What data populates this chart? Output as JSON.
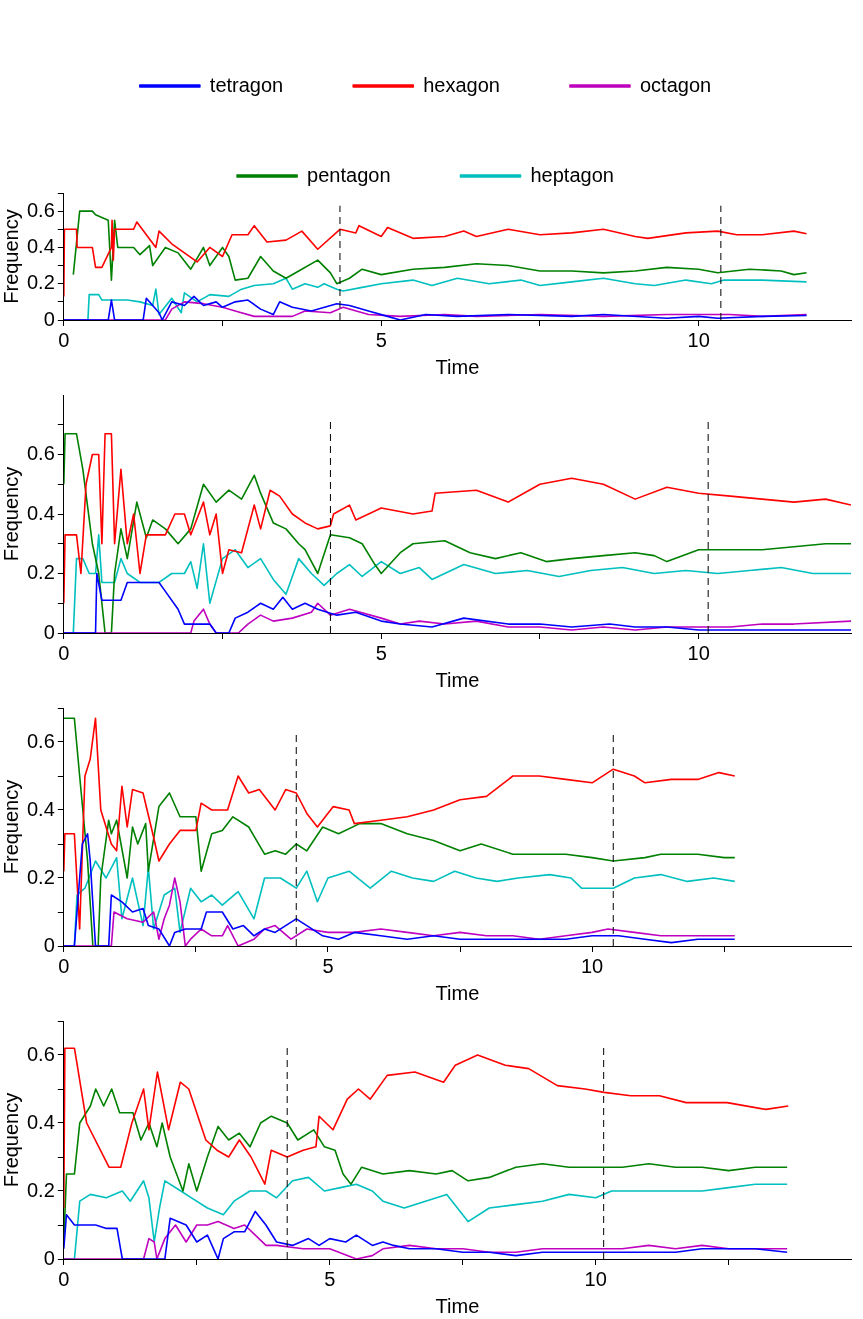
{
  "chart_data": [
    {
      "type": "line",
      "xlabel": "Time",
      "ylabel": "Frequency",
      "xlim": [
        0,
        12.4
      ],
      "ylim": [
        0,
        0.7
      ],
      "xticks": [
        0,
        {
          "value": 2.5,
          "label": null
        },
        5,
        {
          "value": 7.5,
          "label": null
        },
        10
      ],
      "yticks": [
        0,
        {
          "value": 0.1,
          "label": null
        },
        0.2,
        {
          "value": 0.3,
          "label": null
        },
        0.4,
        {
          "value": 0.5,
          "label": null
        },
        0.6,
        {
          "value": 0.7,
          "label": null
        }
      ],
      "grid": false,
      "legend": "top",
      "marker": "none",
      "line_style": "solid",
      "ref_lines": [
        {
          "axis": "x",
          "value": 4.35,
          "color": "#000000",
          "line_style": "dashed"
        },
        {
          "axis": "x",
          "value": 10.35,
          "color": "#000000",
          "line_style": "dashed"
        }
      ],
      "series": [
        {
          "name": "tetragon",
          "color": "#0000ff",
          "x": [
            0,
            0.7,
            0.75,
            0.8,
            1.25,
            1.3,
            1.5,
            1.55,
            1.7,
            1.9,
            2.05,
            2.2,
            2.4,
            2.5,
            2.7,
            2.9,
            3.1,
            3.3,
            3.4,
            3.6,
            3.9,
            4.3,
            4.5,
            4.8,
            5.1,
            5.3,
            5.7,
            6.2,
            7.0,
            8.0,
            8.5,
            9.5,
            10.0,
            10.3,
            11.0,
            11.7
          ],
          "values": [
            0,
            0,
            0.11,
            0,
            0,
            0.12,
            0.04,
            0,
            0.1,
            0.08,
            0.13,
            0.08,
            0.1,
            0.07,
            0.1,
            0.11,
            0.06,
            0.03,
            0.1,
            0.07,
            0.05,
            0.09,
            0.08,
            0.05,
            0.02,
            0,
            0.03,
            0.02,
            0.03,
            0.02,
            0.03,
            0.01,
            0.02,
            0.01,
            0.02,
            0.025
          ]
        },
        {
          "name": "hexagon",
          "color": "#ff0000",
          "x": [
            0,
            0.01,
            0.2,
            0.21,
            0.45,
            0.5,
            0.6,
            0.75,
            0.76,
            0.78,
            0.8,
            1.1,
            1.15,
            1.3,
            1.45,
            1.5,
            1.7,
            1.9,
            2.1,
            2.3,
            2.5,
            2.65,
            2.9,
            3.0,
            3.2,
            3.5,
            3.75,
            4.0,
            4.35,
            4.6,
            4.65,
            5.0,
            5.1,
            5.5,
            6.0,
            6.3,
            6.5,
            7.0,
            7.5,
            8.0,
            8.5,
            9.0,
            9.2,
            9.8,
            10.3,
            10.6,
            11.0,
            11.5,
            11.7
          ],
          "values": [
            0.13,
            0.5,
            0.5,
            0.4,
            0.4,
            0.29,
            0.29,
            0.4,
            0.55,
            0.33,
            0.5,
            0.5,
            0.54,
            0.47,
            0.4,
            0.49,
            0.42,
            0.37,
            0.32,
            0.4,
            0.35,
            0.47,
            0.47,
            0.52,
            0.43,
            0.44,
            0.49,
            0.39,
            0.5,
            0.48,
            0.52,
            0.46,
            0.51,
            0.45,
            0.46,
            0.49,
            0.46,
            0.5,
            0.47,
            0.48,
            0.5,
            0.46,
            0.45,
            0.48,
            0.49,
            0.47,
            0.47,
            0.49,
            0.475
          ]
        },
        {
          "name": "octagon",
          "color": "#bf00bf",
          "x": [
            0,
            1.6,
            1.7,
            1.9,
            2.2,
            2.5,
            2.7,
            3.0,
            3.6,
            3.8,
            4.2,
            4.4,
            4.8,
            5.3,
            6.0,
            6.5,
            7.5,
            8.5,
            9.5,
            10.5,
            11.0,
            11.7
          ],
          "values": [
            0,
            0,
            0.06,
            0.1,
            0.09,
            0.07,
            0.05,
            0.02,
            0.02,
            0.05,
            0.04,
            0.07,
            0.03,
            0.02,
            0.03,
            0.02,
            0.03,
            0.02,
            0.03,
            0.03,
            0.02,
            0.03
          ]
        },
        {
          "name": "pentagon",
          "color": "#008000",
          "x": [
            0.15,
            0.25,
            0.45,
            0.5,
            0.7,
            0.75,
            0.8,
            0.85,
            1.1,
            1.2,
            1.35,
            1.4,
            1.6,
            1.8,
            2.0,
            2.2,
            2.3,
            2.5,
            2.6,
            2.7,
            2.9,
            3.1,
            3.3,
            3.5,
            3.7,
            4.0,
            4.2,
            4.3,
            4.5,
            4.7,
            5.0,
            5.5,
            6.0,
            6.5,
            7.0,
            7.5,
            8.0,
            8.5,
            9.0,
            9.5,
            10.0,
            10.3,
            10.8,
            11.3,
            11.5,
            11.7
          ],
          "values": [
            0.25,
            0.6,
            0.6,
            0.58,
            0.55,
            0.22,
            0.55,
            0.4,
            0.4,
            0.36,
            0.41,
            0.3,
            0.4,
            0.37,
            0.28,
            0.4,
            0.3,
            0.4,
            0.35,
            0.22,
            0.23,
            0.35,
            0.27,
            0.23,
            0.27,
            0.33,
            0.26,
            0.2,
            0.23,
            0.28,
            0.25,
            0.28,
            0.29,
            0.31,
            0.3,
            0.27,
            0.27,
            0.26,
            0.27,
            0.29,
            0.28,
            0.26,
            0.28,
            0.27,
            0.25,
            0.26
          ]
        },
        {
          "name": "heptagon",
          "color": "#00bfbf",
          "x": [
            0,
            0.38,
            0.4,
            0.55,
            0.6,
            1.0,
            1.2,
            1.4,
            1.45,
            1.5,
            1.7,
            1.85,
            1.9,
            2.1,
            2.3,
            2.6,
            2.8,
            3.0,
            3.3,
            3.5,
            3.6,
            3.8,
            4.0,
            4.1,
            4.3,
            4.4,
            4.7,
            5.0,
            5.5,
            5.8,
            6.2,
            6.7,
            7.2,
            7.5,
            8.0,
            8.5,
            9.0,
            9.3,
            9.8,
            10.2,
            10.4,
            11.0,
            11.7
          ],
          "values": [
            0,
            0,
            0.14,
            0.14,
            0.11,
            0.11,
            0.1,
            0.08,
            0.17,
            0.03,
            0.12,
            0.04,
            0.15,
            0.1,
            0.14,
            0.13,
            0.17,
            0.19,
            0.2,
            0.23,
            0.17,
            0.2,
            0.18,
            0.2,
            0.17,
            0.16,
            0.18,
            0.2,
            0.22,
            0.19,
            0.23,
            0.2,
            0.22,
            0.19,
            0.21,
            0.23,
            0.2,
            0.19,
            0.22,
            0.2,
            0.22,
            0.22,
            0.21
          ]
        }
      ]
    },
    {
      "type": "line",
      "xlabel": "Time",
      "ylabel": "Frequency",
      "xlim": [
        0,
        12.4
      ],
      "ylim": [
        0,
        0.8
      ],
      "xticks": [
        0,
        {
          "value": 2.5,
          "label": null
        },
        5,
        {
          "value": 7.5,
          "label": null
        },
        10
      ],
      "yticks": [
        0,
        {
          "value": 0.1,
          "label": null
        },
        0.2,
        {
          "value": 0.3,
          "label": null
        },
        0.4,
        {
          "value": 0.5,
          "label": null
        },
        0.6,
        {
          "value": 0.7,
          "label": null
        }
      ],
      "grid": false,
      "marker": "none",
      "line_style": "solid",
      "ref_lines": [
        {
          "axis": "x",
          "value": 4.2,
          "color": "#000000",
          "line_style": "dashed"
        },
        {
          "axis": "x",
          "value": 10.15,
          "color": "#000000",
          "line_style": "dashed"
        }
      ],
      "series": [
        {
          "color": "#0000ff",
          "x": [
            0,
            0.5,
            0.52,
            0.6,
            0.9,
            1.0,
            1.5,
            1.6,
            1.8,
            1.9,
            2.3,
            2.4,
            2.6,
            2.7,
            2.9,
            3.1,
            3.3,
            3.45,
            3.6,
            3.8,
            4.0,
            4.3,
            4.6,
            5.0,
            5.3,
            5.8,
            6.3,
            7.0,
            7.5,
            8.0,
            8.6,
            9.0,
            9.5,
            10.0,
            10.5,
            11.5,
            12.4
          ],
          "values": [
            0,
            0,
            0.2,
            0.11,
            0.11,
            0.17,
            0.17,
            0.14,
            0.08,
            0.03,
            0.03,
            0,
            0,
            0.05,
            0.07,
            0.1,
            0.08,
            0.12,
            0.08,
            0.1,
            0.08,
            0.06,
            0.07,
            0.04,
            0.03,
            0.02,
            0.05,
            0.03,
            0.03,
            0.02,
            0.03,
            0.02,
            0.02,
            0.01,
            0.01,
            0.01,
            0.01
          ]
        },
        {
          "color": "#ff0000",
          "x": [
            0,
            0.02,
            0.2,
            0.27,
            0.35,
            0.45,
            0.55,
            0.6,
            0.65,
            0.75,
            0.8,
            0.9,
            1.0,
            1.1,
            1.2,
            1.3,
            1.6,
            1.75,
            1.9,
            2.0,
            2.2,
            2.3,
            2.4,
            2.5,
            2.6,
            2.8,
            3.0,
            3.1,
            3.25,
            3.4,
            3.6,
            3.8,
            4.0,
            4.2,
            4.25,
            4.5,
            4.6,
            5.0,
            5.5,
            5.8,
            5.85,
            6.5,
            7.0,
            7.5,
            8.0,
            8.5,
            9.0,
            9.5,
            10.0,
            10.5,
            11.0,
            11.5,
            12.0,
            12.4
          ],
          "values": [
            0.1,
            0.33,
            0.33,
            0.2,
            0.5,
            0.6,
            0.6,
            0.3,
            0.67,
            0.67,
            0.3,
            0.55,
            0.3,
            0.4,
            0.2,
            0.33,
            0.33,
            0.4,
            0.4,
            0.33,
            0.44,
            0.33,
            0.4,
            0.2,
            0.28,
            0.27,
            0.43,
            0.35,
            0.48,
            0.46,
            0.4,
            0.37,
            0.35,
            0.36,
            0.4,
            0.43,
            0.38,
            0.42,
            0.4,
            0.41,
            0.47,
            0.48,
            0.44,
            0.5,
            0.52,
            0.5,
            0.45,
            0.49,
            0.47,
            0.46,
            0.45,
            0.44,
            0.45,
            0.43
          ]
        },
        {
          "color": "#bf00bf",
          "x": [
            0,
            2.0,
            2.05,
            2.2,
            2.3,
            2.4,
            2.75,
            2.9,
            3.1,
            3.3,
            3.6,
            3.9,
            4.0,
            4.2,
            4.5,
            5.0,
            5.3,
            5.6,
            6.0,
            6.5,
            7.0,
            7.5,
            8.0,
            8.5,
            9.0,
            9.5,
            10.0,
            10.5,
            11.0,
            11.5,
            12.4
          ],
          "values": [
            0,
            0,
            0.04,
            0.08,
            0.03,
            0,
            0,
            0.03,
            0.06,
            0.04,
            0.05,
            0.07,
            0.1,
            0.06,
            0.08,
            0.05,
            0.03,
            0.04,
            0.03,
            0.04,
            0.02,
            0.02,
            0.01,
            0.02,
            0.01,
            0.02,
            0.02,
            0.02,
            0.03,
            0.03,
            0.04
          ]
        },
        {
          "color": "#008000",
          "x": [
            0,
            0.02,
            0.2,
            0.3,
            0.45,
            0.55,
            0.65,
            0.75,
            0.8,
            0.9,
            1.0,
            1.15,
            1.3,
            1.4,
            1.6,
            1.8,
            2.0,
            2.2,
            2.4,
            2.6,
            2.8,
            3.0,
            3.1,
            3.3,
            3.5,
            3.7,
            3.8,
            4.0,
            4.2,
            4.5,
            4.7,
            4.9,
            5.0,
            5.3,
            5.5,
            6.0,
            6.4,
            6.8,
            7.2,
            7.6,
            8.0,
            8.5,
            9.0,
            9.3,
            9.5,
            10.0,
            10.5,
            11.0,
            11.5,
            12.0,
            12.4
          ],
          "values": [
            0.5,
            0.67,
            0.67,
            0.55,
            0.3,
            0.2,
            0,
            0,
            0.2,
            0.35,
            0.25,
            0.44,
            0.32,
            0.38,
            0.35,
            0.3,
            0.35,
            0.5,
            0.44,
            0.48,
            0.45,
            0.53,
            0.47,
            0.37,
            0.35,
            0.3,
            0.28,
            0.2,
            0.33,
            0.32,
            0.3,
            0.23,
            0.2,
            0.27,
            0.3,
            0.31,
            0.27,
            0.25,
            0.27,
            0.24,
            0.25,
            0.26,
            0.27,
            0.26,
            0.24,
            0.28,
            0.28,
            0.28,
            0.29,
            0.3,
            0.3
          ]
        },
        {
          "color": "#00bfbf",
          "x": [
            0,
            0.15,
            0.2,
            0.3,
            0.4,
            0.5,
            0.55,
            0.6,
            0.8,
            0.9,
            1.0,
            1.2,
            1.5,
            1.7,
            1.9,
            2.0,
            2.1,
            2.2,
            2.3,
            2.5,
            2.7,
            2.9,
            3.1,
            3.3,
            3.5,
            3.7,
            3.9,
            4.1,
            4.3,
            4.5,
            4.7,
            5.0,
            5.3,
            5.6,
            5.8,
            6.3,
            6.8,
            7.3,
            7.8,
            8.3,
            8.8,
            9.3,
            9.8,
            10.3,
            10.8,
            11.3,
            11.8,
            12.4
          ],
          "values": [
            0,
            0,
            0.25,
            0.25,
            0.2,
            0.2,
            0.33,
            0.17,
            0.17,
            0.25,
            0.2,
            0.17,
            0.17,
            0.2,
            0.2,
            0.24,
            0.15,
            0.3,
            0.1,
            0.25,
            0.28,
            0.22,
            0.25,
            0.18,
            0.13,
            0.25,
            0.2,
            0.16,
            0.2,
            0.23,
            0.19,
            0.24,
            0.2,
            0.22,
            0.18,
            0.23,
            0.2,
            0.21,
            0.19,
            0.21,
            0.22,
            0.2,
            0.21,
            0.2,
            0.21,
            0.22,
            0.2,
            0.2
          ]
        }
      ]
    },
    {
      "type": "line",
      "xlabel": "Time",
      "ylabel": "Frequency",
      "xlim": [
        0,
        14.9
      ],
      "ylim": [
        0,
        0.7
      ],
      "xticks": [
        0,
        {
          "value": 2.5,
          "label": null
        },
        5,
        {
          "value": 7.5,
          "label": null
        },
        10,
        {
          "value": 12.5,
          "label": null
        }
      ],
      "yticks": [
        0,
        {
          "value": 0.1,
          "label": null
        },
        0.2,
        {
          "value": 0.3,
          "label": null
        },
        0.4,
        {
          "value": 0.5,
          "label": null
        },
        0.6,
        {
          "value": 0.7,
          "label": null
        }
      ],
      "grid": false,
      "marker": "none",
      "line_style": "solid",
      "ref_lines": [
        {
          "axis": "x",
          "value": 4.4,
          "color": "#000000",
          "line_style": "dashed"
        },
        {
          "axis": "x",
          "value": 10.4,
          "color": "#000000",
          "line_style": "dashed"
        }
      ],
      "series": [
        {
          "color": "#0000ff",
          "x": [
            0,
            0.2,
            0.25,
            0.35,
            0.45,
            0.5,
            0.6,
            0.85,
            0.9,
            1.1,
            1.3,
            1.5,
            1.6,
            1.8,
            2.0,
            2.1,
            2.3,
            2.6,
            2.7,
            3.0,
            3.2,
            3.4,
            3.6,
            3.8,
            4.0,
            4.2,
            4.4,
            4.6,
            4.9,
            5.2,
            5.5,
            6.0,
            6.5,
            7.0,
            7.5,
            8.0,
            8.5,
            9.0,
            9.5,
            10.0,
            10.5,
            11.0,
            11.5,
            12.0,
            12.7
          ],
          "values": [
            0,
            0,
            0.1,
            0.3,
            0.33,
            0.25,
            0,
            0,
            0.15,
            0.13,
            0.1,
            0.11,
            0.06,
            0.05,
            0,
            0.04,
            0.05,
            0.05,
            0.1,
            0.1,
            0.05,
            0.06,
            0.03,
            0.05,
            0.04,
            0.06,
            0.08,
            0.06,
            0.03,
            0.02,
            0.04,
            0.03,
            0.02,
            0.03,
            0.02,
            0.02,
            0.02,
            0.02,
            0.02,
            0.03,
            0.03,
            0.02,
            0.01,
            0.02,
            0.02
          ]
        },
        {
          "color": "#ff0000",
          "x": [
            0,
            0.02,
            0.2,
            0.3,
            0.4,
            0.5,
            0.6,
            0.7,
            0.9,
            1.0,
            1.1,
            1.2,
            1.3,
            1.5,
            1.7,
            1.8,
            2.0,
            2.2,
            2.5,
            2.6,
            2.8,
            3.1,
            3.3,
            3.5,
            3.7,
            4.0,
            4.2,
            4.4,
            4.6,
            4.8,
            5.1,
            5.4,
            5.5,
            6.0,
            6.5,
            7.0,
            7.5,
            8.0,
            8.5,
            9.0,
            9.5,
            10.0,
            10.4,
            10.8,
            11.0,
            11.5,
            12.0,
            12.4,
            12.7
          ],
          "values": [
            0.22,
            0.33,
            0.33,
            0.05,
            0.5,
            0.55,
            0.67,
            0.4,
            0.3,
            0.28,
            0.47,
            0.35,
            0.46,
            0.45,
            0.32,
            0.25,
            0.3,
            0.34,
            0.34,
            0.42,
            0.4,
            0.4,
            0.5,
            0.45,
            0.46,
            0.4,
            0.46,
            0.45,
            0.39,
            0.35,
            0.41,
            0.4,
            0.36,
            0.37,
            0.38,
            0.4,
            0.43,
            0.44,
            0.5,
            0.5,
            0.49,
            0.48,
            0.52,
            0.5,
            0.48,
            0.49,
            0.49,
            0.51,
            0.5
          ]
        },
        {
          "color": "#bf00bf",
          "x": [
            0,
            0.9,
            0.95,
            1.2,
            1.5,
            1.7,
            1.8,
            1.9,
            2.0,
            2.1,
            2.2,
            2.3,
            2.4,
            2.6,
            2.8,
            3.0,
            3.1,
            3.3,
            3.6,
            3.8,
            4.0,
            4.3,
            4.6,
            5.0,
            5.5,
            6.0,
            6.5,
            7.0,
            7.5,
            8.0,
            8.5,
            9.0,
            9.5,
            10.0,
            10.3,
            10.8,
            11.3,
            11.8,
            12.3,
            12.7
          ],
          "values": [
            0,
            0,
            0.1,
            0.08,
            0.07,
            0.1,
            0.02,
            0.08,
            0.12,
            0.2,
            0.13,
            0,
            0.02,
            0.05,
            0.03,
            0.03,
            0.06,
            0,
            0.02,
            0.05,
            0.06,
            0.02,
            0.05,
            0.04,
            0.04,
            0.05,
            0.04,
            0.03,
            0.04,
            0.03,
            0.03,
            0.02,
            0.03,
            0.04,
            0.05,
            0.04,
            0.03,
            0.03,
            0.03,
            0.03
          ]
        },
        {
          "color": "#008000",
          "x": [
            0,
            0.2,
            0.3,
            0.45,
            0.55,
            0.65,
            0.7,
            0.85,
            0.9,
            1.0,
            1.2,
            1.3,
            1.4,
            1.55,
            1.6,
            1.8,
            2.0,
            2.2,
            2.5,
            2.6,
            2.8,
            3.0,
            3.2,
            3.5,
            3.8,
            4.0,
            4.2,
            4.4,
            4.6,
            4.9,
            5.2,
            5.6,
            6.0,
            6.5,
            7.0,
            7.5,
            7.9,
            8.5,
            9.0,
            9.5,
            10.0,
            10.4,
            11.0,
            11.3,
            12.0,
            12.5,
            12.7
          ],
          "values": [
            0.67,
            0.67,
            0.5,
            0.25,
            0,
            0,
            0.2,
            0.37,
            0.33,
            0.37,
            0.2,
            0.35,
            0.3,
            0.36,
            0.22,
            0.41,
            0.45,
            0.38,
            0.38,
            0.22,
            0.33,
            0.34,
            0.38,
            0.35,
            0.27,
            0.28,
            0.27,
            0.3,
            0.28,
            0.35,
            0.33,
            0.36,
            0.36,
            0.33,
            0.31,
            0.28,
            0.3,
            0.27,
            0.27,
            0.27,
            0.26,
            0.25,
            0.26,
            0.27,
            0.27,
            0.26,
            0.26
          ]
        },
        {
          "color": "#00bfbf",
          "x": [
            0,
            0.2,
            0.25,
            0.4,
            0.6,
            0.8,
            1.0,
            1.1,
            1.3,
            1.5,
            1.6,
            1.7,
            1.9,
            2.1,
            2.2,
            2.4,
            2.6,
            2.8,
            3.0,
            3.3,
            3.6,
            3.8,
            4.1,
            4.4,
            4.6,
            4.8,
            5.0,
            5.4,
            5.8,
            6.2,
            6.6,
            7.0,
            7.4,
            7.8,
            8.2,
            8.6,
            9.2,
            9.6,
            9.8,
            10.4,
            10.8,
            11.3,
            11.8,
            12.3,
            12.7
          ],
          "values": [
            0,
            0,
            0.15,
            0.17,
            0.25,
            0.2,
            0.26,
            0.08,
            0.2,
            0.06,
            0.23,
            0.05,
            0.15,
            0.17,
            0.04,
            0.17,
            0.13,
            0.15,
            0.12,
            0.16,
            0.08,
            0.2,
            0.2,
            0.17,
            0.22,
            0.13,
            0.2,
            0.22,
            0.17,
            0.22,
            0.2,
            0.19,
            0.22,
            0.2,
            0.19,
            0.2,
            0.21,
            0.2,
            0.17,
            0.17,
            0.2,
            0.21,
            0.19,
            0.2,
            0.19
          ]
        }
      ]
    },
    {
      "type": "line",
      "xlabel": "Time",
      "ylabel": "Frequency",
      "xlim": [
        0,
        14.8
      ],
      "ylim": [
        0,
        0.7
      ],
      "xticks": [
        0,
        {
          "value": 2.5,
          "label": null
        },
        5,
        {
          "value": 7.5,
          "label": null
        },
        10,
        {
          "value": 12.5,
          "label": null
        }
      ],
      "yticks": [
        0,
        {
          "value": 0.1,
          "label": null
        },
        0.2,
        {
          "value": 0.3,
          "label": null
        },
        0.4,
        {
          "value": 0.5,
          "label": null
        },
        0.6,
        {
          "value": 0.7,
          "label": null
        }
      ],
      "grid": false,
      "marker": "none",
      "line_style": "solid",
      "ref_lines": [
        {
          "axis": "x",
          "value": 4.2,
          "color": "#000000",
          "line_style": "dashed"
        },
        {
          "axis": "x",
          "value": 10.15,
          "color": "#000000",
          "line_style": "dashed"
        }
      ],
      "series": [
        {
          "color": "#0000ff",
          "x": [
            0,
            0.05,
            0.2,
            0.6,
            0.8,
            1.0,
            1.1,
            1.9,
            2.0,
            2.3,
            2.5,
            2.7,
            2.9,
            3.0,
            3.2,
            3.4,
            3.6,
            3.8,
            4.0,
            4.3,
            4.6,
            4.8,
            5.0,
            5.3,
            5.5,
            5.8,
            6.0,
            6.2,
            6.5,
            7.0,
            7.5,
            8.0,
            8.5,
            9.0,
            9.5,
            10.0,
            10.5,
            11.0,
            11.5,
            12.0,
            12.5,
            13.0,
            13.6
          ],
          "values": [
            0.03,
            0.13,
            0.1,
            0.1,
            0.09,
            0.09,
            0,
            0,
            0.12,
            0.1,
            0.05,
            0.07,
            0,
            0.06,
            0.08,
            0.08,
            0.14,
            0.1,
            0.05,
            0.04,
            0.06,
            0.04,
            0.06,
            0.05,
            0.07,
            0.04,
            0.05,
            0.04,
            0.03,
            0.03,
            0.02,
            0.02,
            0.01,
            0.02,
            0.02,
            0.02,
            0.02,
            0.02,
            0.02,
            0.03,
            0.03,
            0.03,
            0.02
          ]
        },
        {
          "color": "#ff0000",
          "x": [
            0,
            0.02,
            0.2,
            0.43,
            0.85,
            1.07,
            1.28,
            1.5,
            1.6,
            1.76,
            1.97,
            2.19,
            2.35,
            2.67,
            2.88,
            3.1,
            3.3,
            3.52,
            3.78,
            3.9,
            4.2,
            4.5,
            4.74,
            4.8,
            5.06,
            5.33,
            5.54,
            5.76,
            6.08,
            6.6,
            7.14,
            7.36,
            7.78,
            8.3,
            8.74,
            9.28,
            9.8,
            10.16,
            10.66,
            11.2,
            11.7,
            12.47,
            13.2,
            13.62
          ],
          "values": [
            0.15,
            0.62,
            0.62,
            0.4,
            0.27,
            0.27,
            0.4,
            0.5,
            0.38,
            0.55,
            0.38,
            0.52,
            0.5,
            0.35,
            0.32,
            0.3,
            0.35,
            0.3,
            0.22,
            0.32,
            0.3,
            0.32,
            0.33,
            0.42,
            0.38,
            0.47,
            0.5,
            0.47,
            0.54,
            0.55,
            0.52,
            0.57,
            0.6,
            0.57,
            0.56,
            0.51,
            0.5,
            0.49,
            0.48,
            0.48,
            0.46,
            0.46,
            0.44,
            0.45
          ]
        },
        {
          "color": "#bf00bf",
          "x": [
            0,
            1.5,
            1.6,
            1.7,
            1.75,
            1.9,
            2.1,
            2.3,
            2.5,
            2.7,
            2.9,
            3.2,
            3.4,
            3.6,
            3.8,
            4.0,
            4.5,
            5.0,
            5.5,
            5.8,
            6.0,
            6.5,
            7.0,
            7.5,
            8.0,
            8.5,
            9.0,
            9.5,
            10.0,
            10.5,
            11.0,
            11.5,
            12.0,
            12.5,
            13.0,
            13.6
          ],
          "values": [
            0,
            0,
            0.06,
            0.05,
            0,
            0.06,
            0.1,
            0.05,
            0.1,
            0.1,
            0.11,
            0.09,
            0.1,
            0.07,
            0.04,
            0.04,
            0.03,
            0.03,
            0,
            0.01,
            0.03,
            0.04,
            0.03,
            0.03,
            0.02,
            0.02,
            0.03,
            0.03,
            0.03,
            0.03,
            0.04,
            0.03,
            0.04,
            0.03,
            0.03,
            0.03
          ]
        },
        {
          "color": "#008000",
          "x": [
            0,
            0.05,
            0.2,
            0.3,
            0.5,
            0.6,
            0.75,
            0.9,
            1.05,
            1.3,
            1.45,
            1.6,
            1.75,
            1.85,
            2.0,
            2.24,
            2.35,
            2.5,
            2.7,
            2.9,
            3.1,
            3.3,
            3.5,
            3.7,
            3.9,
            4.2,
            4.4,
            4.7,
            4.9,
            5.1,
            5.25,
            5.4,
            5.6,
            6.0,
            6.5,
            7.0,
            7.3,
            7.6,
            8.0,
            8.5,
            9.0,
            9.5,
            10.0,
            10.5,
            11.0,
            11.5,
            12.0,
            12.5,
            13.0,
            13.6
          ],
          "values": [
            0.05,
            0.25,
            0.25,
            0.4,
            0.45,
            0.5,
            0.45,
            0.5,
            0.43,
            0.43,
            0.35,
            0.4,
            0.33,
            0.4,
            0.3,
            0.2,
            0.28,
            0.2,
            0.3,
            0.39,
            0.35,
            0.37,
            0.33,
            0.4,
            0.42,
            0.4,
            0.35,
            0.38,
            0.33,
            0.32,
            0.25,
            0.22,
            0.27,
            0.25,
            0.26,
            0.25,
            0.26,
            0.23,
            0.24,
            0.27,
            0.28,
            0.27,
            0.27,
            0.27,
            0.28,
            0.27,
            0.27,
            0.26,
            0.27,
            0.27
          ]
        },
        {
          "color": "#00bfbf",
          "x": [
            0,
            0.2,
            0.3,
            0.5,
            0.8,
            1.1,
            1.25,
            1.5,
            1.6,
            1.7,
            1.8,
            1.9,
            2.2,
            2.4,
            2.7,
            3.0,
            3.2,
            3.5,
            3.8,
            4.0,
            4.3,
            4.6,
            4.9,
            5.2,
            5.5,
            5.8,
            6.0,
            6.4,
            6.8,
            7.2,
            7.5,
            7.6,
            8.0,
            8.5,
            9.0,
            9.5,
            10.0,
            10.3,
            10.8,
            11.5,
            12.0,
            12.5,
            13.0,
            13.6
          ],
          "values": [
            0,
            0,
            0.17,
            0.19,
            0.18,
            0.2,
            0.17,
            0.23,
            0.18,
            0.05,
            0.15,
            0.23,
            0.2,
            0.18,
            0.15,
            0.13,
            0.17,
            0.2,
            0.2,
            0.18,
            0.23,
            0.24,
            0.2,
            0.21,
            0.22,
            0.2,
            0.17,
            0.15,
            0.17,
            0.19,
            0.13,
            0.11,
            0.15,
            0.16,
            0.17,
            0.19,
            0.18,
            0.2,
            0.2,
            0.2,
            0.2,
            0.21,
            0.22,
            0.22
          ]
        }
      ]
    }
  ]
}
